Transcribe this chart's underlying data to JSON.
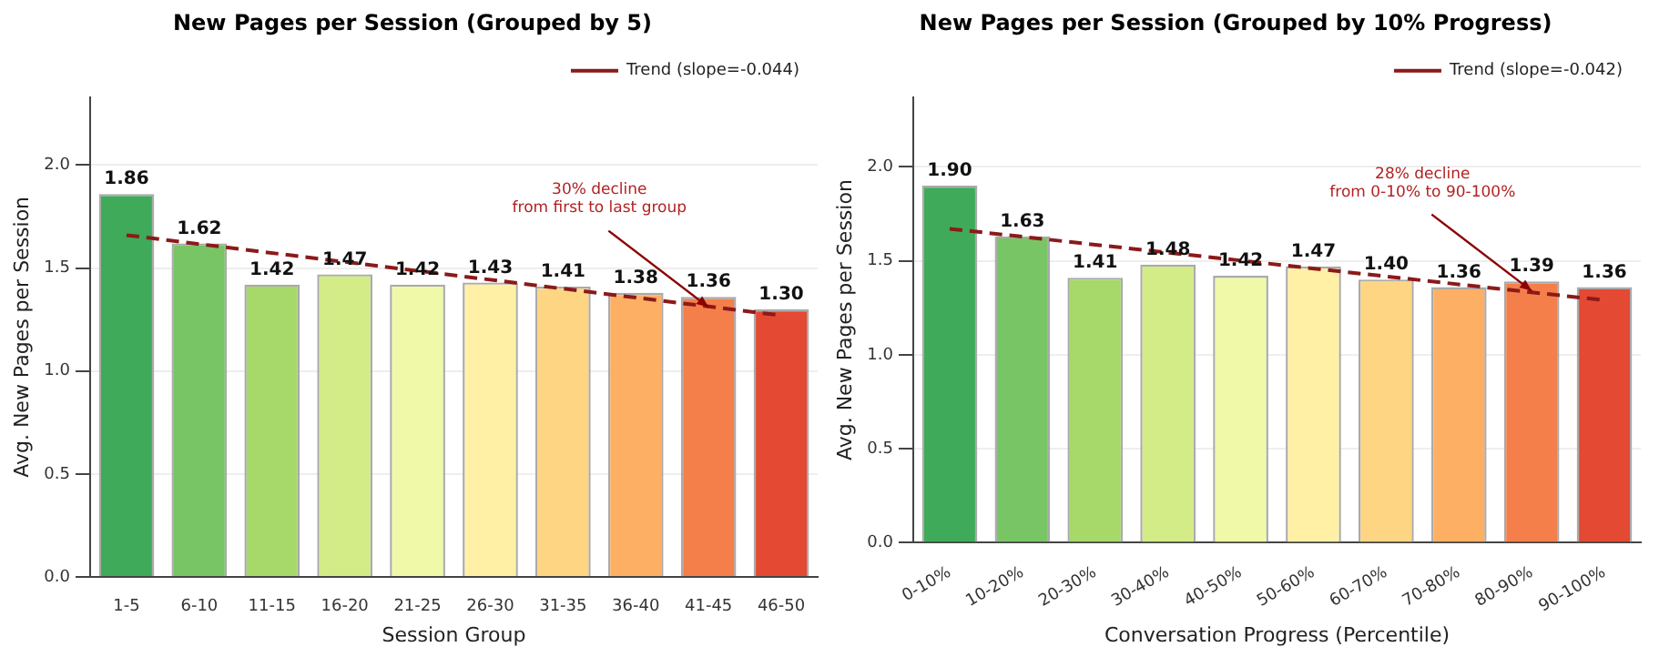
{
  "chart_data": [
    {
      "type": "bar",
      "title": "New Pages per Session (Grouped by 5)",
      "xlabel": "Session Group",
      "ylabel": "Avg. New Pages per Session",
      "categories": [
        "1-5",
        "6-10",
        "11-15",
        "16-20",
        "21-25",
        "26-30",
        "31-35",
        "36-40",
        "41-45",
        "46-50"
      ],
      "series": [
        {
          "values": [
            1.86,
            1.62,
            1.42,
            1.47,
            1.42,
            1.43,
            1.41,
            1.38,
            1.36,
            1.3
          ],
          "value_labels": [
            "1.86",
            "1.62",
            "1.42",
            "1.47",
            "1.42",
            "1.43",
            "1.41",
            "1.38",
            "1.36",
            "1.30"
          ],
          "colors": [
            "#3faa59",
            "#78c566",
            "#a6d96a",
            "#d3ec87",
            "#f0f9a8",
            "#fff0a6",
            "#fed683",
            "#fdb063",
            "#f57f4a",
            "#e34933"
          ]
        },
        {
          "type": "line",
          "name": "Trend (slope=-0.044)",
          "color": "#8b1a1a",
          "x": [
            "1-5",
            "46-50"
          ],
          "values": [
            1.66,
            1.27
          ],
          "line_style": "dashed",
          "marker": "none"
        }
      ],
      "ylim": [
        0,
        2.33
      ],
      "yticks": [
        {
          "value": 0,
          "label": "0.0"
        },
        {
          "value": 0.5,
          "label": "0.5"
        },
        {
          "value": 1,
          "label": "1.0"
        },
        {
          "value": 1.5,
          "label": "1.5"
        },
        {
          "value": 2,
          "label": "2.0"
        }
      ],
      "grid": "y",
      "legend": "top right",
      "annotations": [
        {
          "text": "30% decline\nfrom first to last group",
          "x": "41-45",
          "y": 1.31
        }
      ]
    },
    {
      "type": "bar",
      "title": "New Pages per Session (Grouped by 10% Progress)",
      "xlabel": "Conversation Progress (Percentile)",
      "ylabel": "Avg. New Pages per Session",
      "categories": [
        "0-10%",
        "10-20%",
        "20-30%",
        "30-40%",
        "40-50%",
        "50-60%",
        "60-70%",
        "70-80%",
        "80-90%",
        "90-100%"
      ],
      "series": [
        {
          "values": [
            1.9,
            1.63,
            1.41,
            1.48,
            1.42,
            1.47,
            1.4,
            1.36,
            1.39,
            1.36
          ],
          "value_labels": [
            "1.90",
            "1.63",
            "1.41",
            "1.48",
            "1.42",
            "1.47",
            "1.40",
            "1.36",
            "1.39",
            "1.36"
          ],
          "colors": [
            "#3faa59",
            "#78c566",
            "#a6d96a",
            "#d3ec87",
            "#f0f9a8",
            "#fff0a6",
            "#fed683",
            "#fdb063",
            "#f57f4a",
            "#e34933"
          ]
        },
        {
          "type": "line",
          "name": "Trend (slope=-0.042)",
          "color": "#8b1a1a",
          "x": [
            "0-10%",
            "90-100%"
          ],
          "values": [
            1.67,
            1.29
          ],
          "line_style": "dashed",
          "marker": "none"
        }
      ],
      "ylim": [
        0,
        2.37
      ],
      "yticks": [
        {
          "value": 0,
          "label": "0.0"
        },
        {
          "value": 0.5,
          "label": "0.5"
        },
        {
          "value": 1,
          "label": "1.0"
        },
        {
          "value": 1.5,
          "label": "1.5"
        },
        {
          "value": 2,
          "label": "2.0"
        }
      ],
      "grid": "y",
      "legend": "top right",
      "annotations": [
        {
          "text": "28% decline\nfrom 0-10% to 90-100%",
          "x": "80-90%",
          "y": 1.34
        }
      ]
    }
  ]
}
